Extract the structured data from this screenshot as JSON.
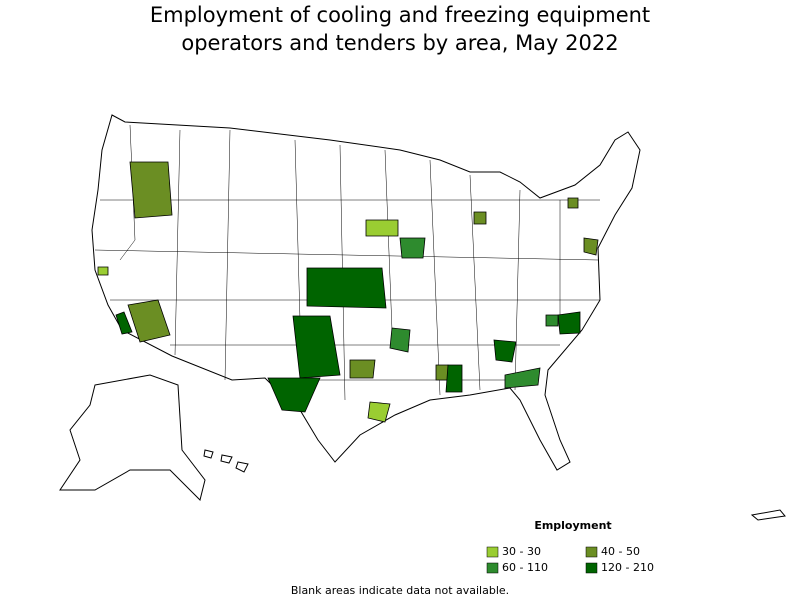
{
  "title": [
    "Employment of cooling and freezing equipment",
    "operators and tenders by area, May 2022"
  ],
  "legend": {
    "title": "Employment",
    "items": [
      {
        "label": "30 - 30",
        "color": "#9acd32"
      },
      {
        "label": "40 - 50",
        "color": "#6b8e23"
      },
      {
        "label": "60 - 110",
        "color": "#2e8b2e"
      },
      {
        "label": "120 - 210",
        "color": "#006400"
      }
    ]
  },
  "footnote": "Blank areas indicate data not available."
}
